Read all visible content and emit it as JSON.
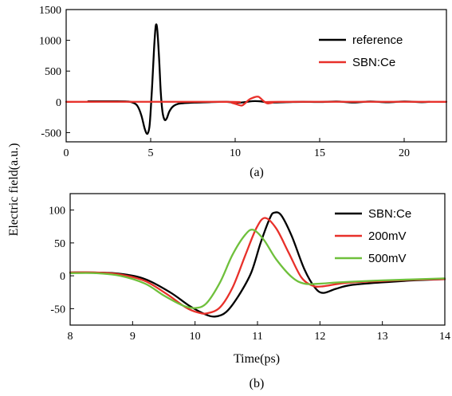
{
  "shared": {
    "ylabel": "Electric field(a.u.)"
  },
  "chart_data": [
    {
      "type": "line",
      "caption": "(a)",
      "xlabel": "",
      "xlim": [
        0,
        22.5
      ],
      "ylim": [
        -650,
        1500
      ],
      "x_ticks": [
        0,
        5,
        10,
        15,
        20
      ],
      "y_ticks": [
        1500,
        1000,
        500,
        0,
        -500
      ],
      "legend_position": "top-right",
      "series": [
        {
          "name": "reference",
          "color": "#000000",
          "points": [
            [
              1.3,
              8
            ],
            [
              3,
              8
            ],
            [
              3.6,
              5
            ],
            [
              3.9,
              -8
            ],
            [
              4.2,
              -60
            ],
            [
              4.45,
              -220
            ],
            [
              4.65,
              -440
            ],
            [
              4.8,
              -520
            ],
            [
              4.92,
              -420
            ],
            [
              5.0,
              -150
            ],
            [
              5.1,
              320
            ],
            [
              5.2,
              850
            ],
            [
              5.27,
              1150
            ],
            [
              5.33,
              1260
            ],
            [
              5.4,
              1140
            ],
            [
              5.5,
              700
            ],
            [
              5.6,
              150
            ],
            [
              5.7,
              -160
            ],
            [
              5.82,
              -290
            ],
            [
              5.95,
              -270
            ],
            [
              6.1,
              -160
            ],
            [
              6.3,
              -80
            ],
            [
              6.6,
              -35
            ],
            [
              7.0,
              -20
            ],
            [
              7.6,
              -12
            ],
            [
              8.5,
              -5
            ],
            [
              9.5,
              0
            ],
            [
              10.0,
              -15
            ],
            [
              10.5,
              -8
            ],
            [
              11.0,
              10
            ],
            [
              11.5,
              8
            ],
            [
              12.0,
              -10
            ],
            [
              13,
              -5
            ],
            [
              14,
              0
            ],
            [
              15,
              -3
            ],
            [
              16,
              5
            ],
            [
              17,
              -10
            ],
            [
              18,
              5
            ],
            [
              19,
              -8
            ],
            [
              20,
              5
            ],
            [
              21,
              -5
            ],
            [
              21.5,
              0
            ]
          ]
        },
        {
          "name": "SBN:Ce",
          "color": "#e8302a",
          "points": [
            [
              0,
              0
            ],
            [
              9.5,
              0
            ],
            [
              9.8,
              -15
            ],
            [
              10.15,
              -45
            ],
            [
              10.4,
              -60
            ],
            [
              10.6,
              -20
            ],
            [
              10.85,
              40
            ],
            [
              11.2,
              80
            ],
            [
              11.4,
              80
            ],
            [
              11.65,
              20
            ],
            [
              11.9,
              -25
            ],
            [
              12.2,
              -15
            ],
            [
              12.6,
              0
            ],
            [
              22.5,
              0
            ]
          ]
        }
      ]
    },
    {
      "type": "line",
      "caption": "(b)",
      "xlabel": "Time(ps)",
      "xlim": [
        8,
        14
      ],
      "ylim": [
        -75,
        125
      ],
      "x_ticks": [
        8,
        9,
        10,
        11,
        12,
        13,
        14
      ],
      "y_ticks": [
        100,
        50,
        0,
        -50
      ],
      "legend_position": "top-right",
      "series": [
        {
          "name": "SBN:Ce",
          "color": "#000000",
          "points": [
            [
              8,
              5
            ],
            [
              8.4,
              5
            ],
            [
              8.8,
              3
            ],
            [
              9.2,
              -5
            ],
            [
              9.6,
              -25
            ],
            [
              9.9,
              -45
            ],
            [
              10.15,
              -58
            ],
            [
              10.32,
              -62
            ],
            [
              10.5,
              -55
            ],
            [
              10.7,
              -30
            ],
            [
              10.9,
              5
            ],
            [
              11.05,
              50
            ],
            [
              11.2,
              88
            ],
            [
              11.27,
              96
            ],
            [
              11.38,
              92
            ],
            [
              11.55,
              60
            ],
            [
              11.75,
              10
            ],
            [
              11.92,
              -18
            ],
            [
              12.05,
              -26
            ],
            [
              12.25,
              -20
            ],
            [
              12.5,
              -14
            ],
            [
              13,
              -10
            ],
            [
              13.5,
              -7
            ],
            [
              14,
              -5
            ]
          ]
        },
        {
          "name": "200mV",
          "color": "#e8302a",
          "points": [
            [
              8,
              5
            ],
            [
              8.4,
              5
            ],
            [
              8.8,
              2
            ],
            [
              9.2,
              -8
            ],
            [
              9.55,
              -28
            ],
            [
              9.85,
              -48
            ],
            [
              10.05,
              -56
            ],
            [
              10.2,
              -57
            ],
            [
              10.4,
              -48
            ],
            [
              10.6,
              -18
            ],
            [
              10.8,
              30
            ],
            [
              10.98,
              72
            ],
            [
              11.12,
              88
            ],
            [
              11.3,
              72
            ],
            [
              11.5,
              35
            ],
            [
              11.7,
              -2
            ],
            [
              11.88,
              -15
            ],
            [
              12.05,
              -16
            ],
            [
              12.4,
              -11
            ],
            [
              13,
              -8
            ],
            [
              13.5,
              -6
            ],
            [
              14,
              -5
            ]
          ]
        },
        {
          "name": "500mV",
          "color": "#6fc03c",
          "points": [
            [
              8,
              4
            ],
            [
              8.4,
              4
            ],
            [
              8.8,
              0
            ],
            [
              9.2,
              -12
            ],
            [
              9.5,
              -30
            ],
            [
              9.8,
              -45
            ],
            [
              10.0,
              -49
            ],
            [
              10.18,
              -42
            ],
            [
              10.4,
              -10
            ],
            [
              10.6,
              32
            ],
            [
              10.8,
              62
            ],
            [
              10.93,
              70
            ],
            [
              11.1,
              55
            ],
            [
              11.3,
              25
            ],
            [
              11.55,
              -2
            ],
            [
              11.75,
              -12
            ],
            [
              12.0,
              -12
            ],
            [
              12.3,
              -10
            ],
            [
              13,
              -7
            ],
            [
              14,
              -4
            ]
          ]
        }
      ]
    }
  ]
}
